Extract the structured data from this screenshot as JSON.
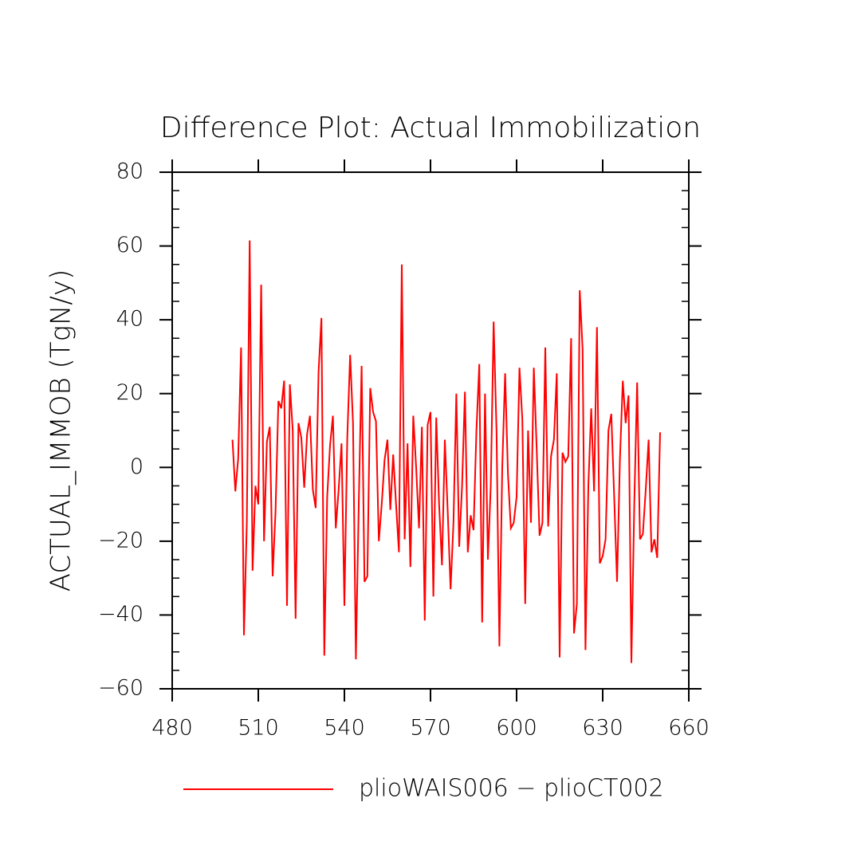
{
  "chart_data": {
    "type": "line",
    "title": "Difference Plot: Actual Immobilization",
    "y_label": "ACTUAL_IMMOB  (TgN/y)",
    "x": [
      501,
      502,
      503,
      504,
      505,
      506,
      507,
      508,
      509,
      510,
      511,
      512,
      513,
      514,
      515,
      516,
      517,
      518,
      519,
      520,
      521,
      522,
      523,
      524,
      525,
      526,
      527,
      528,
      529,
      530,
      531,
      532,
      533,
      534,
      535,
      536,
      537,
      538,
      539,
      540,
      541,
      542,
      543,
      544,
      545,
      546,
      547,
      548,
      549,
      550,
      551,
      552,
      553,
      554,
      555,
      556,
      557,
      558,
      559,
      560,
      561,
      562,
      563,
      564,
      565,
      566,
      567,
      568,
      569,
      570,
      571,
      572,
      573,
      574,
      575,
      576,
      577,
      578,
      579,
      580,
      581,
      582,
      583,
      584,
      585,
      586,
      587,
      588,
      589,
      590,
      591,
      592,
      593,
      594,
      595,
      596,
      597,
      598,
      599,
      600,
      601,
      602,
      603,
      604,
      605,
      606,
      607,
      608,
      609,
      610,
      611,
      612,
      613,
      614,
      615,
      616,
      617,
      618,
      619,
      620,
      621,
      622,
      623,
      624,
      625,
      626,
      627,
      628,
      629,
      630,
      631,
      632,
      633,
      634,
      635,
      636,
      637,
      638,
      639,
      640,
      641,
      642,
      643,
      644,
      645,
      646,
      647,
      648,
      649,
      650
    ],
    "series": [
      {
        "name": "plioWAIS006 − plioCT002",
        "color": "#ff0000",
        "values": [
          7.5,
          -6.5,
          2.5,
          32.5,
          -45.5,
          -15,
          61.5,
          -28,
          -5,
          -10,
          49.5,
          -20,
          7,
          11,
          -29.5,
          -12,
          18,
          16,
          23.5,
          -37.5,
          22.5,
          10,
          -41,
          12,
          8,
          -5.5,
          9,
          14,
          -6,
          -11,
          26,
          40.5,
          -51,
          -8,
          6,
          14,
          -16.5,
          -6,
          6.5,
          -37.5,
          8,
          30.5,
          12,
          -52,
          -10,
          27.5,
          -31,
          -29.5,
          21.5,
          15,
          12.5,
          -20,
          -10,
          2,
          7.5,
          -11.5,
          3.5,
          -10,
          -23,
          55,
          -19.5,
          6.5,
          -27,
          14,
          0,
          -16.5,
          11,
          -41.5,
          11.5,
          15,
          -35,
          13.5,
          -10,
          -26.5,
          7.5,
          -12,
          -33,
          -15,
          20,
          -21.5,
          -5,
          20.5,
          -23,
          -13,
          -17,
          10,
          28,
          -42,
          20,
          -25,
          -5,
          39.5,
          10,
          -48.5,
          0,
          25.5,
          -2,
          -16.5,
          -15,
          -8,
          27,
          13,
          -37,
          10,
          -15,
          27,
          5,
          -18.5,
          -15,
          32.5,
          -16,
          3,
          7.5,
          25.5,
          -51.5,
          4,
          1.5,
          3,
          35,
          -45,
          -37,
          48,
          32,
          -49.5,
          -5,
          16,
          -6.5,
          38,
          -26,
          -24,
          -19.5,
          10,
          14.5,
          -8,
          -31,
          2,
          23.5,
          12,
          19.5,
          -53,
          -10,
          23,
          -19.5,
          -18,
          -6,
          7.5,
          -23,
          -19.5,
          -24.5,
          9.5
        ]
      }
    ],
    "xlim": [
      480,
      660
    ],
    "xticks": [
      480,
      510,
      540,
      570,
      600,
      630,
      660
    ],
    "ylim": [
      -60,
      80
    ],
    "yticks": [
      {
        "value": -60,
        "label": "−60"
      },
      {
        "value": -40,
        "label": "−40"
      },
      {
        "value": -20,
        "label": "−20"
      },
      0,
      20,
      40,
      60,
      80
    ]
  }
}
